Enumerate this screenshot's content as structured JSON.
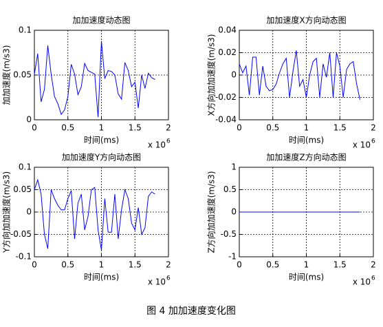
{
  "figure_caption": "图 4  加加速度变化图",
  "chart_data": [
    {
      "type": "line",
      "title": "加加速度动态图",
      "x_label": "时间(ms)",
      "y_label": "加加速度(m/s3)",
      "x_scale_label": {
        "base": "x 10",
        "exponent": "6"
      },
      "xlim": [
        0,
        2
      ],
      "xticks": [
        0,
        0.5,
        1,
        1.5,
        2
      ],
      "ylim": [
        0,
        0.1
      ],
      "yticks": [
        0,
        0.05,
        0.1
      ],
      "grid": true,
      "color": "#0000ff",
      "x": [
        0,
        0.05,
        0.1,
        0.15,
        0.2,
        0.25,
        0.3,
        0.35,
        0.4,
        0.45,
        0.5,
        0.55,
        0.6,
        0.65,
        0.7,
        0.75,
        0.8,
        0.85,
        0.9,
        0.95,
        1,
        1.05,
        1.1,
        1.15,
        1.2,
        1.25,
        1.3,
        1.35,
        1.4,
        1.45,
        1.5,
        1.55,
        1.6,
        1.65,
        1.7,
        1.75,
        1.8
      ],
      "values": [
        0.051,
        0.074,
        0.02,
        0.034,
        0.083,
        0.051,
        0.026,
        0.018,
        0.006,
        0.011,
        0.026,
        0.062,
        0.051,
        0.028,
        0.037,
        0.063,
        0.055,
        0.053,
        0.051,
        0.003,
        0.088,
        0.046,
        0.055,
        0.054,
        0.05,
        0.029,
        0.023,
        0.064,
        0.055,
        0.037,
        0.042,
        0.013,
        0.05,
        0.035,
        0.052,
        0.047,
        0.045
      ]
    },
    {
      "type": "line",
      "title": "加加速度X方向动态图",
      "x_label": "时间(ms)",
      "y_label": "X方向加加速度(m/s3)",
      "x_scale_label": {
        "base": "x 10",
        "exponent": "6"
      },
      "xlim": [
        0,
        2
      ],
      "xticks": [
        0,
        0.5,
        1,
        1.5,
        2
      ],
      "ylim": [
        -0.04,
        0.04
      ],
      "yticks": [
        -0.04,
        -0.02,
        0,
        0.02,
        0.04
      ],
      "grid": true,
      "color": "#0000ff",
      "x": [
        0,
        0.05,
        0.1,
        0.15,
        0.2,
        0.25,
        0.3,
        0.35,
        0.4,
        0.45,
        0.5,
        0.55,
        0.6,
        0.65,
        0.7,
        0.75,
        0.8,
        0.85,
        0.9,
        0.95,
        1,
        1.05,
        1.1,
        1.15,
        1.2,
        1.25,
        1.3,
        1.35,
        1.4,
        1.45,
        1.5,
        1.55,
        1.6,
        1.65,
        1.7,
        1.75,
        1.8
      ],
      "values": [
        0.01,
        0.002,
        0.008,
        -0.018,
        0.016,
        0.016,
        -0.018,
        0.008,
        -0.01,
        -0.014,
        -0.013,
        -0.008,
        0.002,
        0.01,
        0.015,
        -0.02,
        0.003,
        0.022,
        -0.01,
        -0.004,
        -0.02,
        0,
        0.012,
        0.015,
        -0.02,
        0.01,
        -0.002,
        0.02,
        -0.02,
        0.02,
        0.008,
        -0.02,
        0.005,
        0.01,
        0.012,
        -0.008,
        -0.022
      ]
    },
    {
      "type": "line",
      "title": "加加速度Y方向动态图",
      "x_label": "时间(ms)",
      "y_label": "Y方向加加速度(m/s3)",
      "x_scale_label": {
        "base": "x 10",
        "exponent": "6"
      },
      "xlim": [
        0,
        2
      ],
      "xticks": [
        0,
        0.5,
        1,
        1.5,
        2
      ],
      "ylim": [
        -0.1,
        0.1
      ],
      "yticks": [
        -0.1,
        -0.05,
        0,
        0.05,
        0.1
      ],
      "grid": true,
      "color": "#0000ff",
      "x": [
        0,
        0.05,
        0.1,
        0.15,
        0.2,
        0.25,
        0.3,
        0.35,
        0.4,
        0.45,
        0.5,
        0.55,
        0.6,
        0.65,
        0.7,
        0.75,
        0.8,
        0.85,
        0.9,
        0.95,
        1,
        1.05,
        1.1,
        1.15,
        1.2,
        1.25,
        1.3,
        1.35,
        1.4,
        1.45,
        1.5,
        1.55,
        1.6,
        1.65,
        1.7,
        1.75,
        1.8
      ],
      "values": [
        0.05,
        0.072,
        0.04,
        -0.05,
        -0.082,
        0.05,
        0.03,
        0.015,
        0.005,
        0.005,
        0.03,
        0.048,
        -0.06,
        0.02,
        0.04,
        -0.04,
        -0.01,
        0.05,
        0.055,
        -0.04,
        -0.085,
        0.03,
        -0.045,
        -0.045,
        0.04,
        -0.06,
        0.005,
        0.05,
        0.03,
        -0.025,
        -0.04,
        0.01,
        -0.05,
        -0.035,
        0.035,
        0.045,
        0.04
      ]
    },
    {
      "type": "line",
      "title": "加加速度Z方向动态图",
      "x_label": "时间(ms)",
      "y_label": "Z方向加加速度(m/s3)",
      "x_scale_label": {
        "base": "x 10",
        "exponent": "6"
      },
      "xlim": [
        0,
        2
      ],
      "xticks": [
        0,
        0.5,
        1,
        1.5,
        2
      ],
      "ylim": [
        -1,
        1
      ],
      "yticks": [
        -1,
        -0.5,
        0,
        0.5,
        1
      ],
      "grid": true,
      "color": "#0000ff",
      "x": [
        0,
        0.05,
        0.1,
        0.15,
        0.2,
        0.25,
        0.3,
        0.35,
        0.4,
        0.45,
        0.5,
        0.55,
        0.6,
        0.65,
        0.7,
        0.75,
        0.8,
        0.85,
        0.9,
        0.95,
        1,
        1.05,
        1.1,
        1.15,
        1.2,
        1.25,
        1.3,
        1.35,
        1.4,
        1.45,
        1.5,
        1.55,
        1.6,
        1.65,
        1.7,
        1.75,
        1.8
      ],
      "values": [
        0,
        0,
        0,
        0,
        0,
        0,
        0,
        0,
        0,
        0,
        0,
        0,
        0,
        0,
        0,
        0,
        0,
        0,
        0,
        0,
        0,
        0,
        0,
        0,
        0,
        0,
        0,
        0,
        0,
        0,
        0,
        0,
        0,
        0,
        0,
        0,
        0
      ]
    }
  ]
}
